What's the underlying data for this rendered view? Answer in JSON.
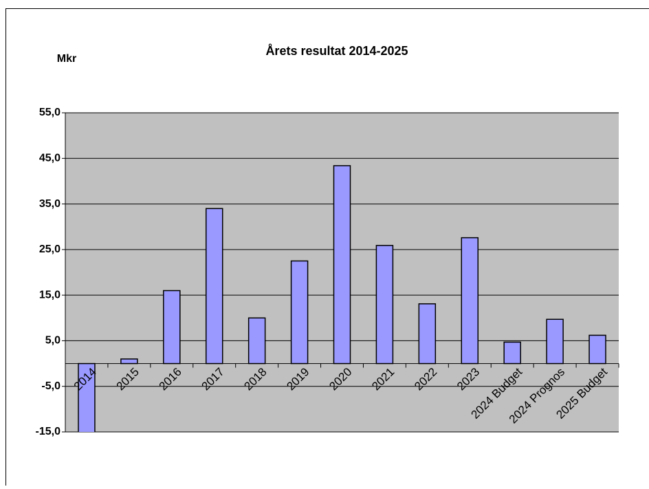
{
  "chart_data": {
    "type": "bar",
    "title": "Årets resultat  2014-2025",
    "y_label": "Mkr",
    "categories": [
      "2014",
      "2015",
      "2016",
      "2017",
      "2018",
      "2019",
      "2020",
      "2021",
      "2022",
      "2023",
      "2024 Budget",
      "2024 Prognos",
      "2025 Budget"
    ],
    "values": [
      -16,
      1.0,
      16.0,
      34.0,
      10.0,
      22.5,
      43.4,
      25.9,
      13.1,
      27.6,
      4.7,
      9.7,
      6.2
    ],
    "color": "#9999ff",
    "ylim": [
      -15,
      55
    ],
    "yticks": [
      {
        "value": -15,
        "label": "-15,0"
      },
      {
        "value": -5,
        "label": "-5,0"
      },
      {
        "value": 5,
        "label": "5,0"
      },
      {
        "value": 15,
        "label": "15,0"
      },
      {
        "value": 25,
        "label": "25,0"
      },
      {
        "value": 35,
        "label": "35,0"
      },
      {
        "value": 45,
        "label": "45,0"
      },
      {
        "value": 55,
        "label": "55,0"
      }
    ],
    "grid": true
  }
}
